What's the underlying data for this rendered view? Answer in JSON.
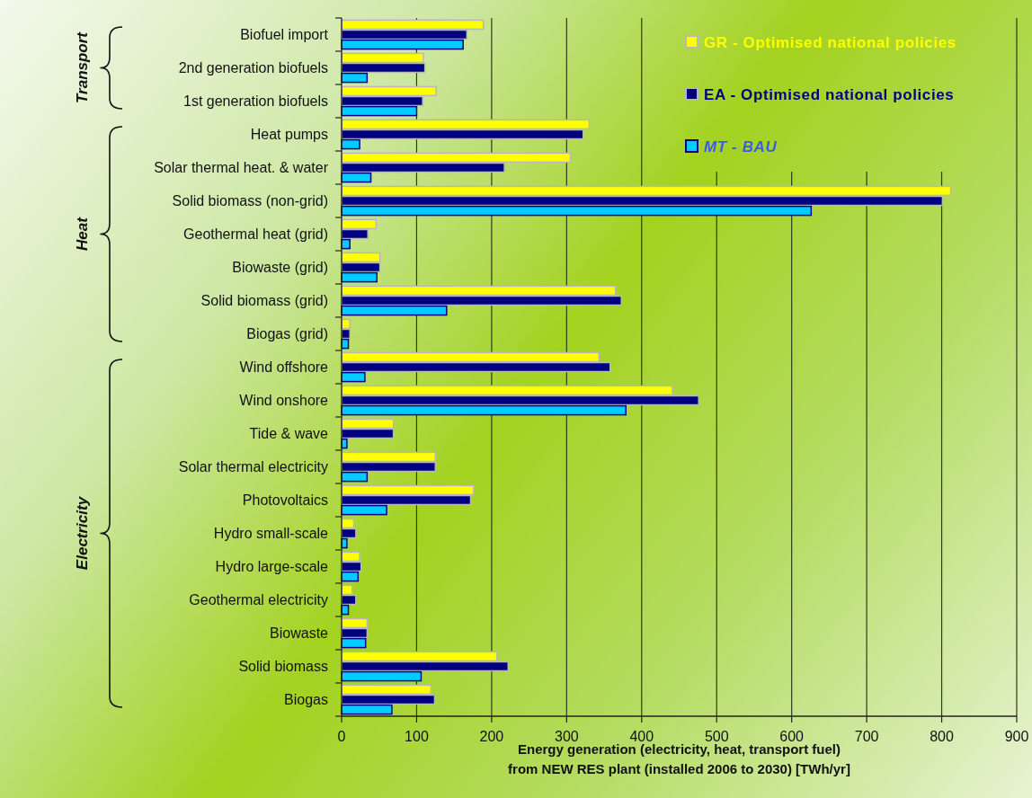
{
  "chart_data": {
    "type": "bar",
    "orientation": "horizontal",
    "categories": [
      "Biofuel import",
      "2nd generation biofuels",
      "1st generation biofuels",
      "Heat pumps",
      "Solar thermal heat. & water",
      "Solid biomass (non-grid)",
      "Geothermal heat (grid)",
      "Biowaste (grid)",
      "Solid biomass (grid)",
      "Biogas (grid)",
      "Wind offshore",
      "Wind onshore",
      "Tide & wave",
      "Solar thermal electricity",
      "Photovoltaics",
      "Hydro small-scale",
      "Hydro large-scale",
      "Geothermal electricity",
      "Biowaste",
      "Solid biomass",
      "Biogas"
    ],
    "series": [
      {
        "name": "GR - Optimised national policies",
        "color": "#ffff00",
        "values": [
          189,
          109,
          126,
          330,
          305,
          812,
          46,
          51,
          365,
          11,
          343,
          441,
          69,
          125,
          176,
          16,
          24,
          14,
          34,
          207,
          119
        ]
      },
      {
        "name": "EA - Optimised national policies",
        "color": "#000080",
        "values": [
          167,
          111,
          108,
          322,
          217,
          801,
          35,
          51,
          373,
          11,
          358,
          476,
          69,
          125,
          172,
          19,
          26,
          19,
          34,
          222,
          124
        ]
      },
      {
        "name": "MT - BAU",
        "color": "#00ccff",
        "values": [
          162,
          34,
          100,
          24,
          39,
          626,
          11,
          47,
          140,
          9,
          31,
          379,
          7,
          34,
          60,
          7,
          22,
          9,
          32,
          106,
          67
        ]
      }
    ],
    "xlim": [
      0,
      900
    ],
    "xticks": [
      0,
      100,
      200,
      300,
      400,
      500,
      600,
      700,
      800,
      900
    ],
    "xlabel": "Energy generation (electricity, heat, transport fuel)\nfrom NEW RES plant (installed 2006 to 2030) [TWh/yr]",
    "grid": "x",
    "legend": "top right",
    "annotations": [
      "Transport",
      "Heat",
      "Electricity"
    ]
  }
}
